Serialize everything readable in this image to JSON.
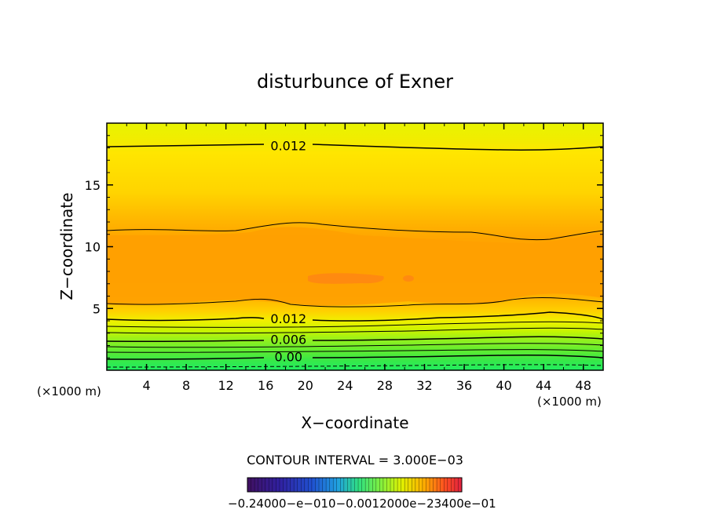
{
  "chart_data": {
    "type": "contour",
    "title": "disturbunce of Exner",
    "xlabel": "X−coordinate",
    "ylabel": "Z−coordinate",
    "x_unit_left": "(×1000 m)",
    "x_unit_right": "(×1000 m)",
    "xlim": [
      0,
      50
    ],
    "ylim": [
      0,
      20
    ],
    "x_ticks": [
      4,
      8,
      12,
      16,
      20,
      24,
      28,
      32,
      36,
      40,
      44,
      48
    ],
    "y_ticks": [
      5,
      10,
      15
    ],
    "contour_interval_text": "CONTOUR INTERVAL = 3.000E−03",
    "contour_labels": [
      {
        "text": "0.012",
        "x": 18.3,
        "z": 18.2
      },
      {
        "text": "0.012",
        "x": 18.3,
        "z": 4.2
      },
      {
        "text": "0.006",
        "x": 18.3,
        "z": 2.5
      },
      {
        "text": "0.00",
        "x": 18.3,
        "z": 1.1
      }
    ],
    "colorbar_labels": "−0.24000−e−010−0.0012000e−23400e−01",
    "colors": {
      "low_green": "#22ee55",
      "yellow": "#ffe000",
      "orange": "#ffa000",
      "dark_orange": "#ff8a10",
      "top_yellow": "#e8f400"
    }
  }
}
